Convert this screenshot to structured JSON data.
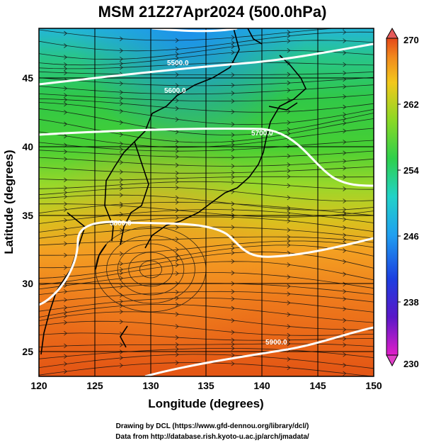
{
  "title": "MSM 21Z27Apr2024 (500.0hPa)",
  "x_axis_label": "Longitude (degrees)",
  "y_axis_label": "Latitude  (degrees)",
  "x_ticks": [
    "120",
    "125",
    "130",
    "135",
    "140",
    "145",
    "150"
  ],
  "y_ticks": [
    "25",
    "30",
    "35",
    "40",
    "45"
  ],
  "colorbar_ticks": [
    "270",
    "262",
    "254",
    "246",
    "238",
    "230"
  ],
  "contour_labels": [
    "5500.0",
    "5600.0",
    "5700.0",
    "5800.0",
    "5900.0"
  ],
  "credits": [
    "Drawing by DCL (https://www.gfd-dennou.org/library/dcl/)",
    "Data from http://database.rish.kyoto-u.ac.jp/arch/jmadata/"
  ],
  "chart_data": {
    "type": "map",
    "xlim": [
      120,
      150
    ],
    "ylim": [
      22.5,
      48
    ],
    "colorbar_range": [
      230,
      270
    ],
    "colors": {
      "warm": "#e04a12",
      "mid": "#3cc83c",
      "cool": "#27c4e6",
      "contour": "#ffffff"
    }
  }
}
